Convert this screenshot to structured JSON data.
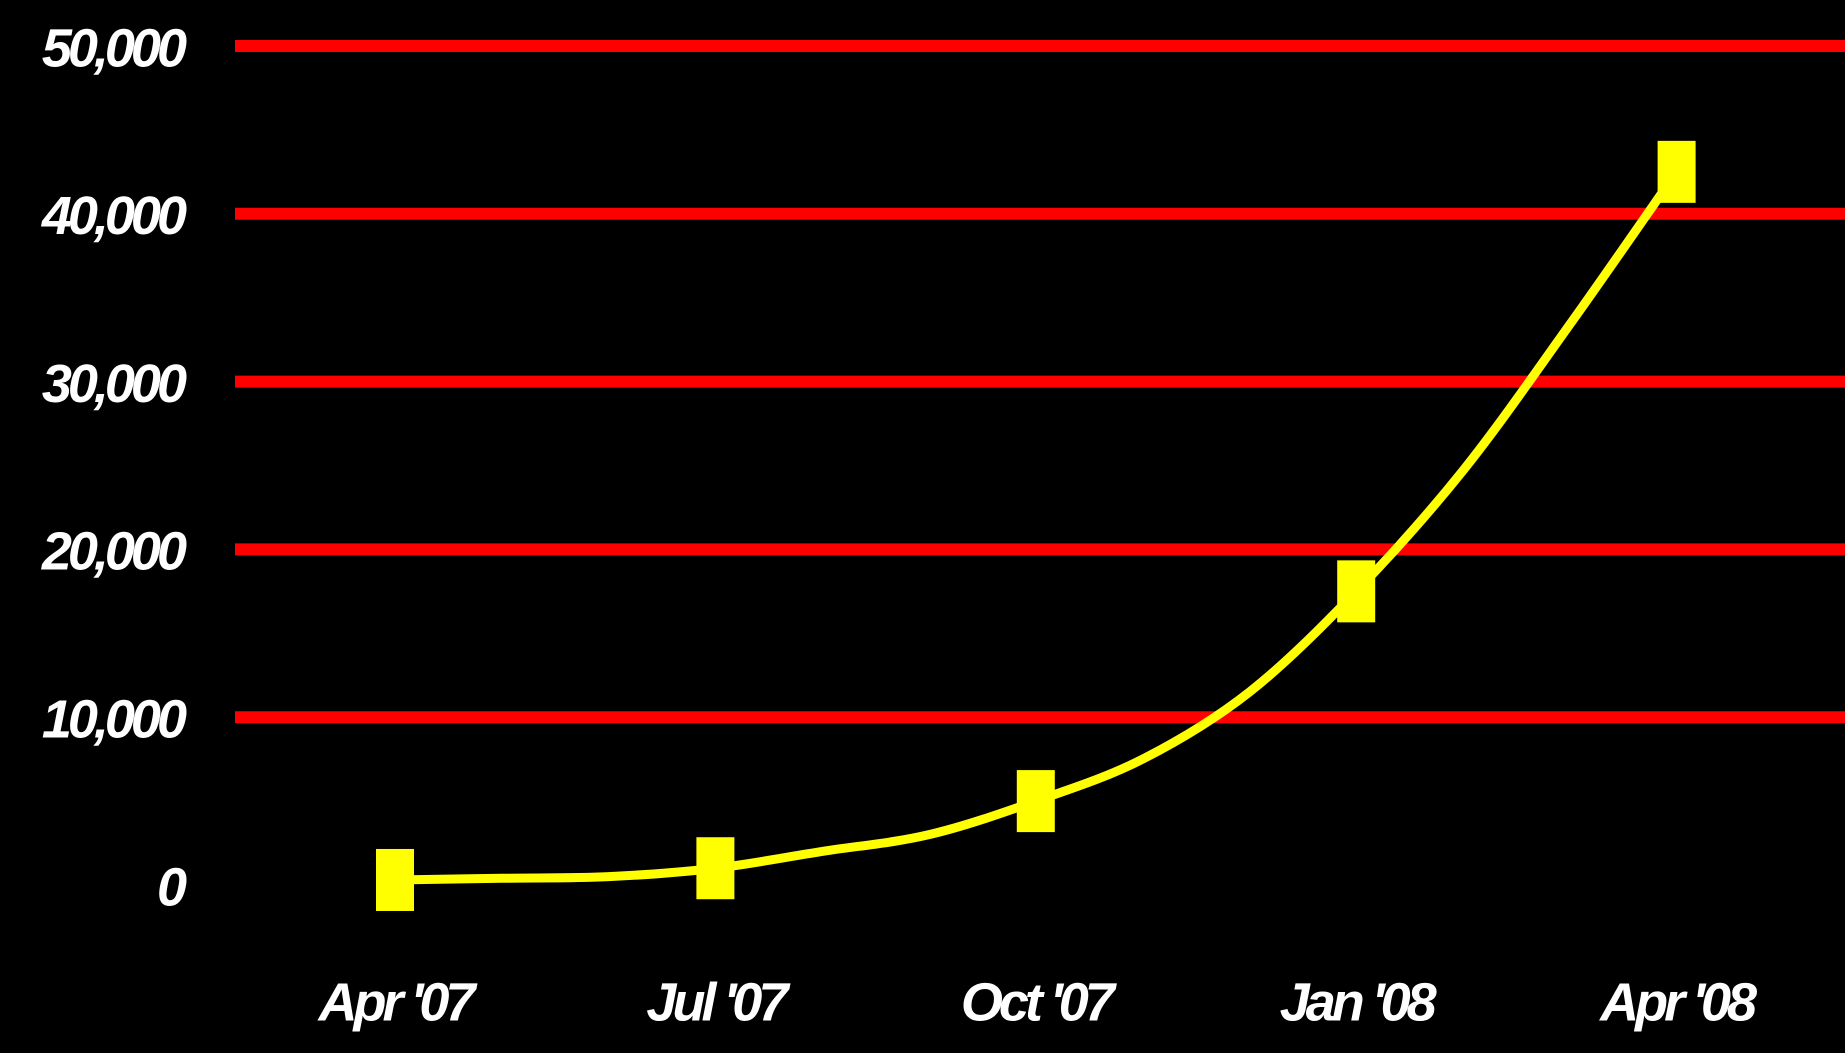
{
  "chart_data": {
    "type": "line",
    "categories": [
      "Apr '07",
      null,
      null,
      "Jul '07",
      null,
      null,
      "Oct '07",
      null,
      null,
      "Jan '08",
      null,
      null,
      "Apr '08"
    ],
    "series": [
      {
        "color": "#ffff00",
        "values": [
          300,
          400,
          500,
          1000,
          2000,
          3000,
          5000,
          7500,
          11500,
          17500,
          24700,
          33400,
          42500
        ]
      }
    ],
    "ylim": [
      0,
      50000
    ],
    "yticks": [
      0,
      {
        "value": 10000,
        "label": "10,000"
      },
      {
        "value": 20000,
        "label": "20,000"
      },
      {
        "value": 30000,
        "label": "30,000"
      },
      {
        "value": 40000,
        "label": "40,000"
      },
      {
        "value": 50000,
        "label": "50,000"
      }
    ],
    "grid": true,
    "grid_color": "#ff0000",
    "background": "#000000"
  }
}
